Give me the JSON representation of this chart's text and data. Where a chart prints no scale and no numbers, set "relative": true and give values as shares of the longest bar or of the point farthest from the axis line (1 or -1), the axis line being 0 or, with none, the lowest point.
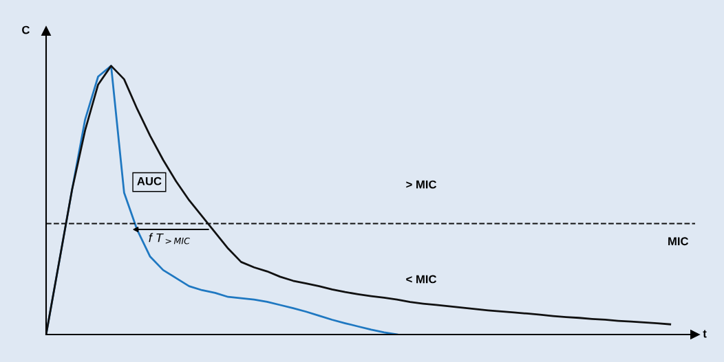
{
  "chart_data": {
    "type": "line",
    "relative": true,
    "xlabel": "t",
    "ylabel": "C",
    "marker": "none",
    "line_style": "solid",
    "categories": [
      null,
      null,
      null,
      null,
      null,
      null,
      null,
      null,
      null,
      null,
      null,
      null,
      null,
      null,
      null,
      null,
      null,
      null,
      null,
      null,
      null,
      null,
      null,
      null,
      null,
      null,
      null,
      null,
      null,
      null,
      null,
      null,
      null,
      null,
      null,
      null,
      null,
      null,
      null,
      null,
      null,
      null,
      null,
      null,
      null,
      null,
      null,
      null,
      null
    ],
    "series": [
      {
        "color": "#1f78c1",
        "values": [
          0,
          0.27,
          0.54,
          0.8,
          0.96,
          1.0,
          0.528,
          0.39,
          0.29,
          0.24,
          0.21,
          0.18,
          0.165,
          0.155,
          0.14,
          0.135,
          0.13,
          0.122,
          0.11,
          0.098,
          0.085,
          0.07,
          0.055,
          0.042,
          0.03,
          0.018,
          0.008,
          0,
          null,
          null,
          null,
          null,
          null,
          null,
          null,
          null,
          null,
          null,
          null,
          null,
          null,
          null,
          null,
          null,
          null,
          null,
          null,
          null,
          null
        ]
      },
      {
        "color": "#111111",
        "values": [
          0,
          0.27,
          0.54,
          0.76,
          0.93,
          1.0,
          0.95,
          0.84,
          0.74,
          0.65,
          0.57,
          0.5,
          0.44,
          0.38,
          0.32,
          0.27,
          0.25,
          0.235,
          0.215,
          0.2,
          0.19,
          0.18,
          0.168,
          0.158,
          0.15,
          0.143,
          0.137,
          0.13,
          0.121,
          0.115,
          0.11,
          0.105,
          0.1,
          0.095,
          0.09,
          0.086,
          0.082,
          0.078,
          0.074,
          0.069,
          0.065,
          0.062,
          0.058,
          0.055,
          0.051,
          0.048,
          0.045,
          0.042,
          0.038
        ]
      }
    ],
    "ref_lines": [
      {
        "axis": "y",
        "value": 0.413,
        "label": "MIC",
        "color": "#111111",
        "line_style": "dashed"
      }
    ],
    "annotations": [
      "> MIC",
      "< MIC",
      "AUC",
      "f T$_{>MIC}$"
    ]
  }
}
